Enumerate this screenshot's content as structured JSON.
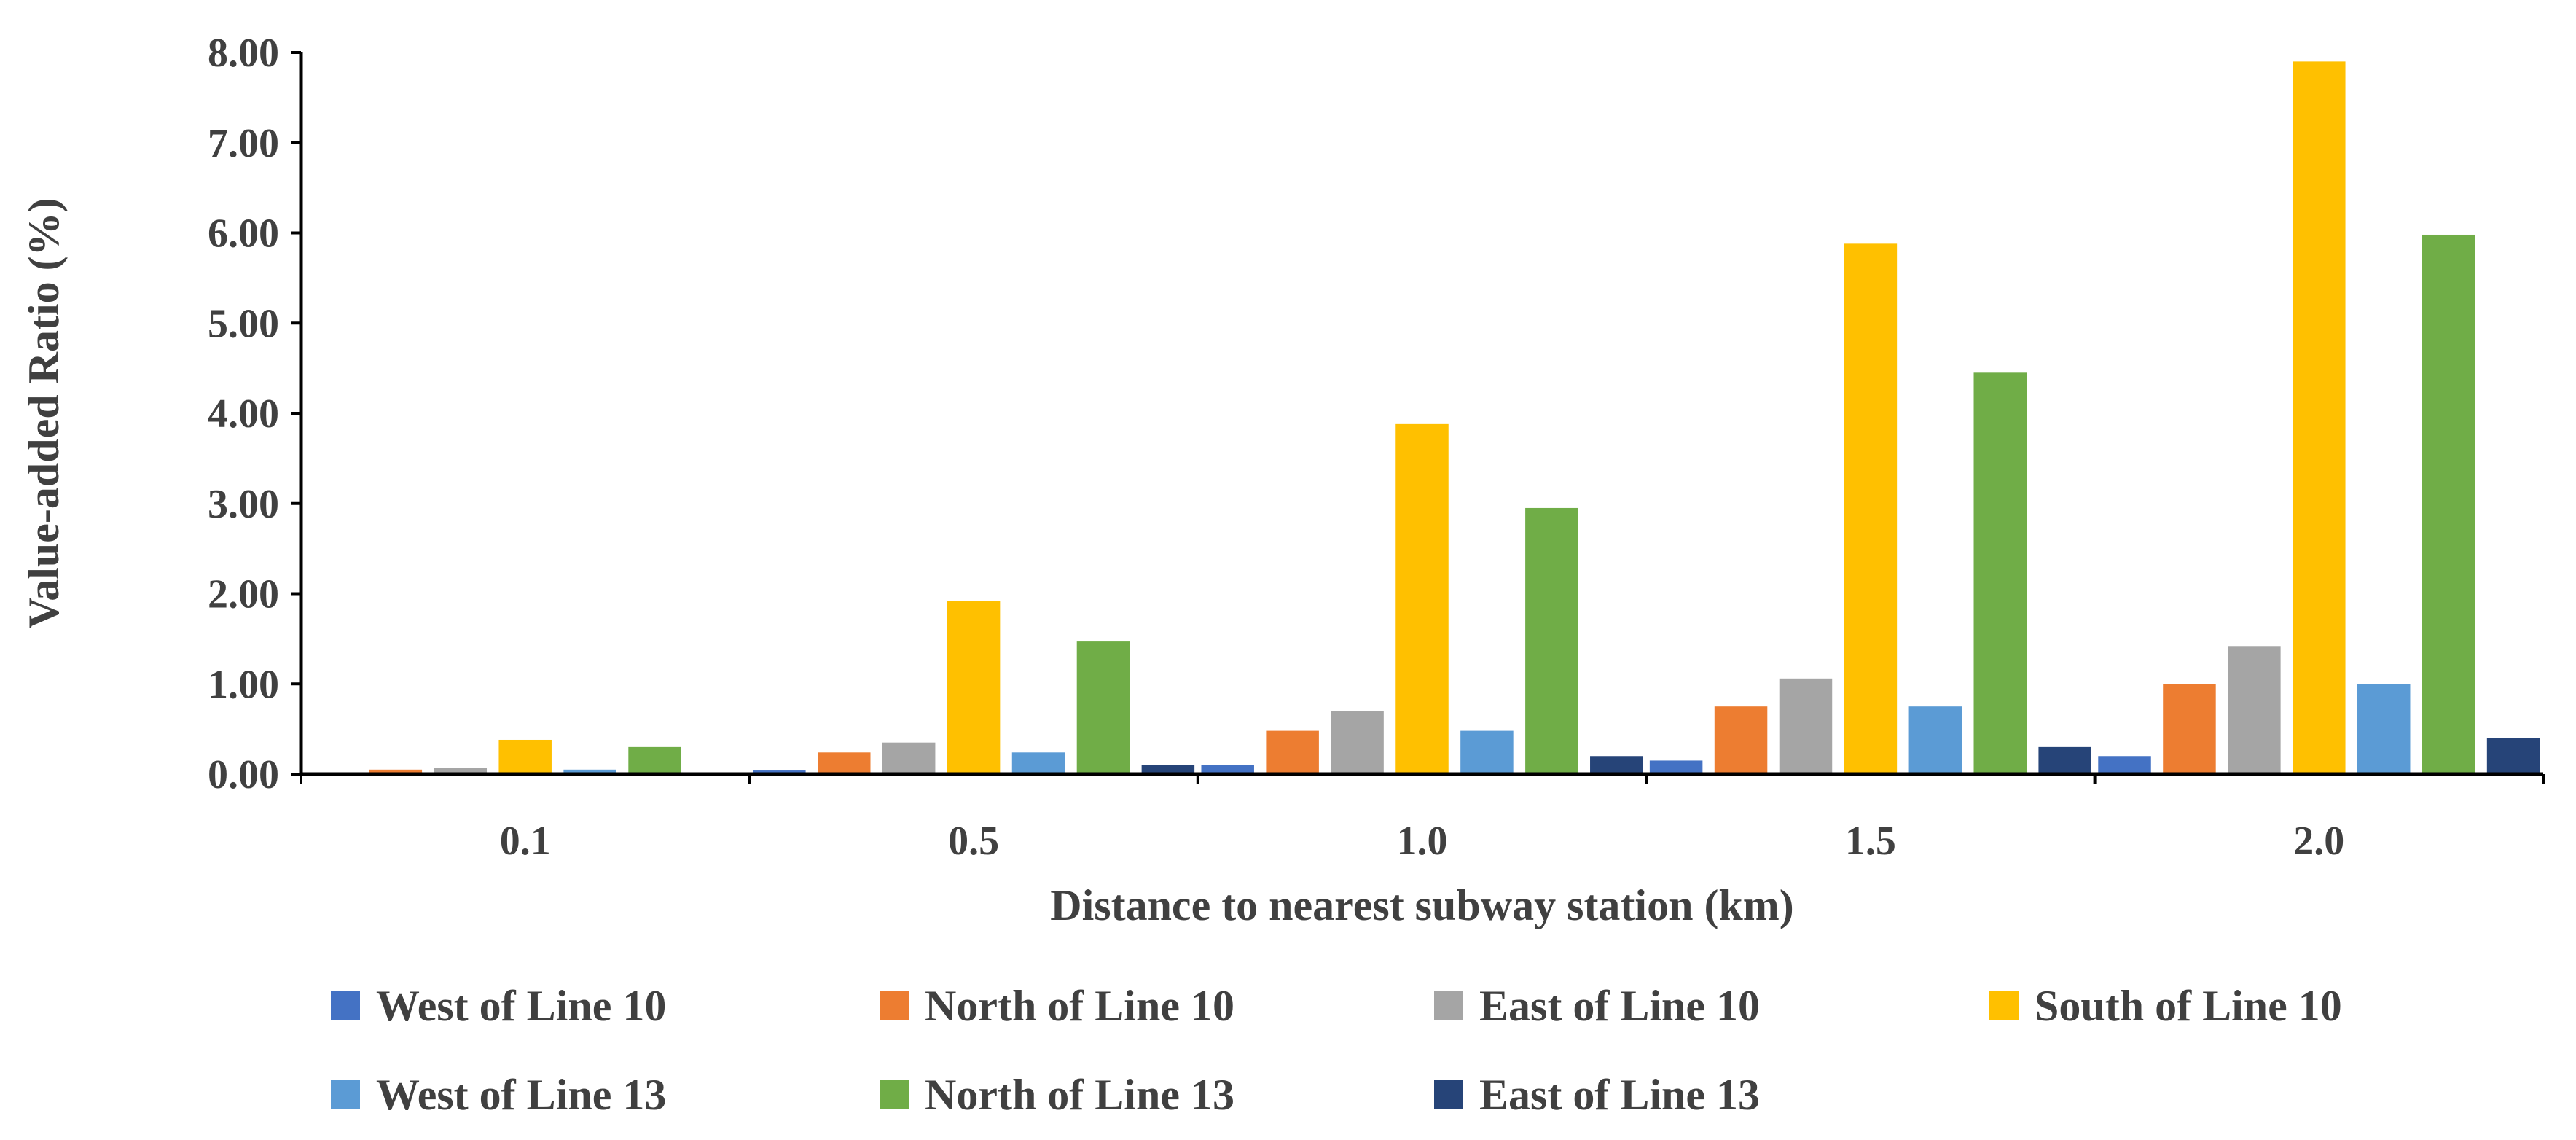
{
  "chart_data": {
    "type": "bar",
    "title": "",
    "xlabel": "Distance to nearest subway station (km)",
    "ylabel": "Value-added Ratio (%)",
    "ylim": [
      0,
      8
    ],
    "yticks": [
      "0.00",
      "1.00",
      "2.00",
      "3.00",
      "4.00",
      "5.00",
      "6.00",
      "7.00",
      "8.00"
    ],
    "categories": [
      "0.1",
      "0.5",
      "1.0",
      "1.5",
      "2.0"
    ],
    "grid": false,
    "legend_position": "bottom",
    "series": [
      {
        "name": "West of Line 10",
        "color": "#4472C4",
        "values": [
          0.02,
          0.04,
          0.1,
          0.15,
          0.2
        ]
      },
      {
        "name": "North of Line 10",
        "color": "#ED7D31",
        "values": [
          0.05,
          0.24,
          0.48,
          0.75,
          1.0
        ]
      },
      {
        "name": "East of Line 10",
        "color": "#A5A5A5",
        "values": [
          0.07,
          0.35,
          0.7,
          1.06,
          1.42
        ]
      },
      {
        "name": "South of Line 10",
        "color": "#FFC000",
        "values": [
          0.38,
          1.92,
          3.88,
          5.88,
          7.9
        ]
      },
      {
        "name": "West of Line 13",
        "color": "#5B9BD5",
        "values": [
          0.05,
          0.24,
          0.48,
          0.75,
          1.0
        ]
      },
      {
        "name": "North of Line 13",
        "color": "#70AD47",
        "values": [
          0.3,
          1.47,
          2.95,
          4.45,
          5.98
        ]
      },
      {
        "name": "East of Line 13",
        "color": "#264478",
        "values": [
          0.02,
          0.1,
          0.2,
          0.3,
          0.4
        ]
      }
    ]
  }
}
